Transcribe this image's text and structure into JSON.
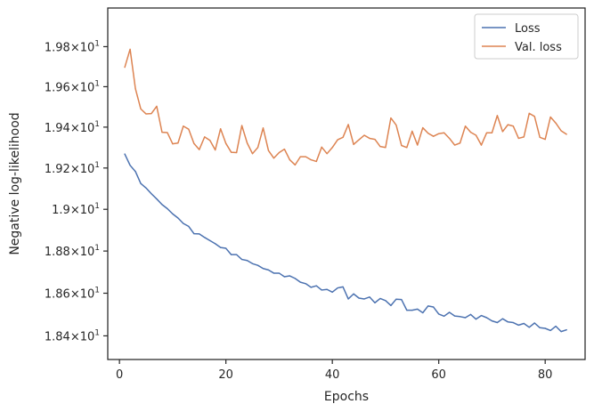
{
  "chart_data": {
    "type": "line",
    "xlabel": "Epochs",
    "ylabel": "Negative log-likelihood",
    "xlim": [
      -2.2,
      87.5
    ],
    "ylim": [
      18.29,
      19.995
    ],
    "x_ticks": [
      0,
      20,
      40,
      60,
      80
    ],
    "x_tick_labels": [
      "0",
      "20",
      "40",
      "60",
      "80"
    ],
    "y_ticks": [
      18.4,
      18.6,
      18.8,
      19.0,
      19.2,
      19.4,
      19.6,
      19.8
    ],
    "y_tick_labels": [
      {
        "mantissa": "1.84",
        "exp": "1"
      },
      {
        "mantissa": "1.86",
        "exp": "1"
      },
      {
        "mantissa": "1.88",
        "exp": "1"
      },
      {
        "mantissa": "1.9",
        "exp": "1"
      },
      {
        "mantissa": "1.92",
        "exp": "1"
      },
      {
        "mantissa": "1.94",
        "exp": "1"
      },
      {
        "mantissa": "1.96",
        "exp": "1"
      },
      {
        "mantissa": "1.98",
        "exp": "1"
      }
    ],
    "y_tick_times": "×",
    "y_tick_base": "10",
    "log_scale_y": true,
    "grid": false,
    "legend_position": "top-right",
    "series": [
      {
        "name": "Loss",
        "color": "#4c72b0",
        "x": [
          1,
          2,
          3,
          4,
          5,
          6,
          7,
          8,
          9,
          10,
          11,
          12,
          13,
          14,
          15,
          16,
          17,
          18,
          19,
          20,
          21,
          22,
          23,
          24,
          25,
          26,
          27,
          28,
          29,
          30,
          31,
          32,
          33,
          34,
          35,
          36,
          37,
          38,
          39,
          40,
          41,
          42,
          43,
          44,
          45,
          46,
          47,
          48,
          49,
          50,
          51,
          52,
          53,
          54,
          55,
          56,
          57,
          58,
          59,
          60,
          61,
          62,
          63,
          64,
          65,
          66,
          67,
          68,
          69,
          70,
          71,
          72,
          73,
          74,
          75,
          76,
          77,
          78,
          79,
          80,
          81,
          82,
          83,
          84
        ],
        "values": [
          19.268,
          19.213,
          19.183,
          19.125,
          19.103,
          19.075,
          19.05,
          19.023,
          19.003,
          18.978,
          18.958,
          18.932,
          18.918,
          18.883,
          18.882,
          18.865,
          18.85,
          18.835,
          18.817,
          18.813,
          18.783,
          18.783,
          18.76,
          18.755,
          18.74,
          18.732,
          18.717,
          18.71,
          18.695,
          18.695,
          18.678,
          18.682,
          18.67,
          18.652,
          18.645,
          18.628,
          18.635,
          18.615,
          18.618,
          18.605,
          18.625,
          18.63,
          18.573,
          18.597,
          18.577,
          18.573,
          18.582,
          18.555,
          18.575,
          18.565,
          18.542,
          18.572,
          18.57,
          18.52,
          18.52,
          18.525,
          18.508,
          18.54,
          18.535,
          18.502,
          18.492,
          18.51,
          18.493,
          18.49,
          18.485,
          18.5,
          18.478,
          18.495,
          18.485,
          18.47,
          18.462,
          18.48,
          18.465,
          18.462,
          18.45,
          18.458,
          18.44,
          18.46,
          18.438,
          18.435,
          18.425,
          18.445,
          18.42,
          18.428
        ]
      },
      {
        "name": "Val. loss",
        "color": "#dd8452",
        "x": [
          1,
          2,
          3,
          4,
          5,
          6,
          7,
          8,
          9,
          10,
          11,
          12,
          13,
          14,
          15,
          16,
          17,
          18,
          19,
          20,
          21,
          22,
          23,
          24,
          25,
          26,
          27,
          28,
          29,
          30,
          31,
          32,
          33,
          34,
          35,
          36,
          37,
          38,
          39,
          40,
          41,
          42,
          43,
          44,
          45,
          46,
          47,
          48,
          49,
          50,
          51,
          52,
          53,
          54,
          55,
          56,
          57,
          58,
          59,
          60,
          61,
          62,
          63,
          64,
          65,
          66,
          67,
          68,
          69,
          70,
          71,
          72,
          73,
          74,
          75,
          76,
          77,
          78,
          79,
          80,
          81,
          82,
          83,
          84
        ],
        "values": [
          19.697,
          19.787,
          19.59,
          19.49,
          19.465,
          19.467,
          19.503,
          19.375,
          19.373,
          19.318,
          19.322,
          19.405,
          19.39,
          19.32,
          19.29,
          19.352,
          19.335,
          19.288,
          19.392,
          19.32,
          19.277,
          19.275,
          19.408,
          19.322,
          19.27,
          19.3,
          19.396,
          19.285,
          19.248,
          19.275,
          19.292,
          19.24,
          19.215,
          19.255,
          19.255,
          19.24,
          19.232,
          19.302,
          19.27,
          19.3,
          19.338,
          19.35,
          19.413,
          19.315,
          19.338,
          19.36,
          19.345,
          19.34,
          19.305,
          19.3,
          19.445,
          19.41,
          19.31,
          19.3,
          19.38,
          19.312,
          19.397,
          19.37,
          19.355,
          19.368,
          19.372,
          19.345,
          19.312,
          19.322,
          19.405,
          19.375,
          19.36,
          19.312,
          19.372,
          19.372,
          19.457,
          19.378,
          19.412,
          19.405,
          19.345,
          19.352,
          19.468,
          19.453,
          19.35,
          19.34,
          19.45,
          19.42,
          19.382,
          19.365
        ]
      }
    ]
  }
}
